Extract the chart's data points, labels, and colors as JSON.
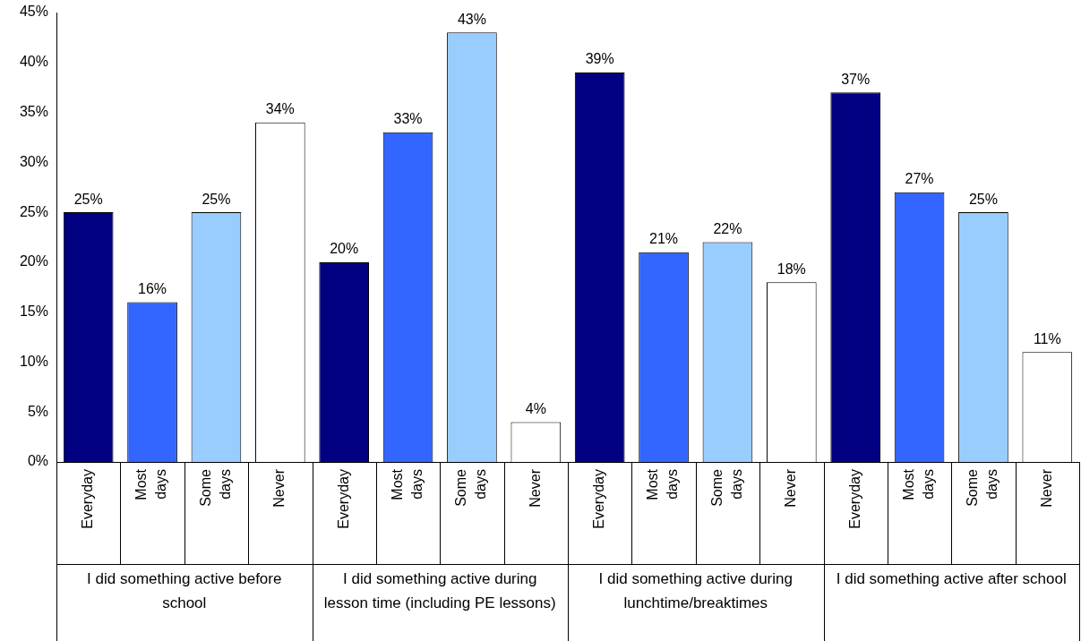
{
  "chart_data": {
    "type": "bar",
    "categories": [
      "Everyday",
      "Most days",
      "Some days",
      "Never",
      "Everyday",
      "Most days",
      "Some days",
      "Never",
      "Everyday",
      "Most days",
      "Some days",
      "Never",
      "Everyday",
      "Most days",
      "Some days",
      "Never"
    ],
    "values": [
      25,
      16,
      25,
      34,
      20,
      33,
      43,
      4,
      39,
      21,
      22,
      18,
      37,
      27,
      25,
      11
    ],
    "colors": [
      "#000080",
      "#3366ff",
      "#99ccff",
      "#ffffff",
      "#000080",
      "#3366ff",
      "#99ccff",
      "#ffffff",
      "#000080",
      "#3366ff",
      "#99ccff",
      "#ffffff",
      "#000080",
      "#3366ff",
      "#99ccff",
      "#ffffff"
    ],
    "value_labels": [
      "25%",
      "16%",
      "25%",
      "34%",
      "20%",
      "33%",
      "43%",
      "4%",
      "39%",
      "21%",
      "22%",
      "18%",
      "37%",
      "27%",
      "25%",
      "11%"
    ],
    "annotations": [
      "I did something active before school",
      "I did something active during lesson time (including PE lessons)",
      "I did something active during lunchtime/breaktimes",
      "I did something active after school"
    ],
    "ylim": [
      0,
      45
    ],
    "yticks": [
      {
        "value": 0,
        "label": "0%"
      },
      {
        "value": 5,
        "label": "5%"
      },
      {
        "value": 10,
        "label": "10%"
      },
      {
        "value": 15,
        "label": "15%"
      },
      {
        "value": 20,
        "label": "20%"
      },
      {
        "value": 25,
        "label": "25%"
      },
      {
        "value": 30,
        "label": "30%"
      },
      {
        "value": 35,
        "label": "35%"
      },
      {
        "value": 40,
        "label": "40%"
      },
      {
        "value": 45,
        "label": "45%"
      }
    ],
    "grid": false,
    "legend": false
  }
}
